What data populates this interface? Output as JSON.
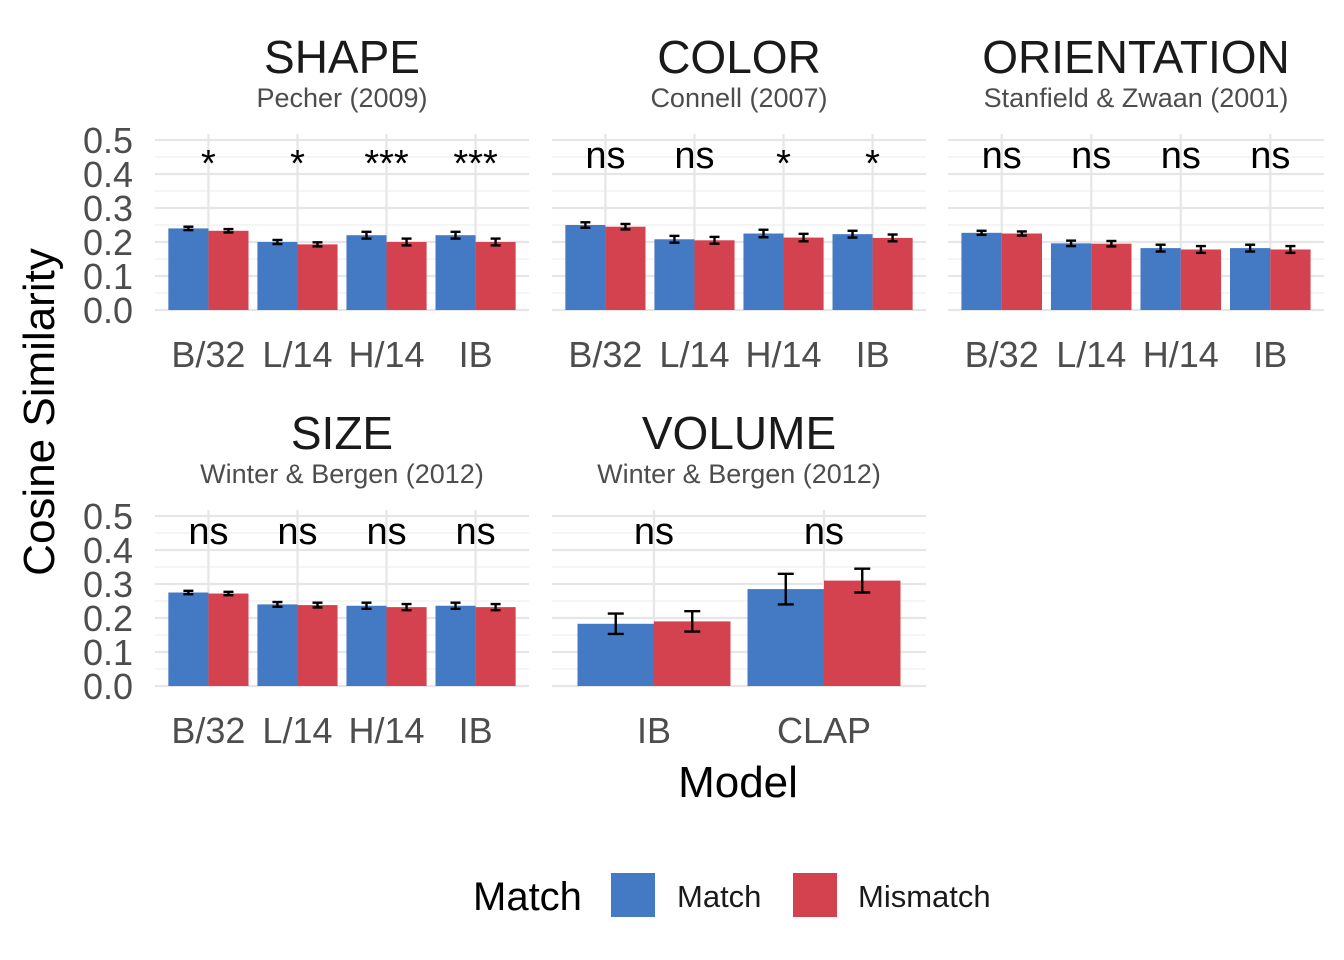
{
  "colors": {
    "match": "#4479C4",
    "mismatch": "#D5424F"
  },
  "chart_data": {
    "type": "bar",
    "xlabel": "Model",
    "ylabel": "Cosine Similarity",
    "ylim": [
      0,
      0.5
    ],
    "yticks": [
      0.0,
      0.1,
      0.2,
      0.3,
      0.4,
      0.5
    ],
    "ytick_labels": [
      "0.0",
      "0.1",
      "0.2",
      "0.3",
      "0.4",
      "0.5"
    ],
    "grid": true,
    "legend": {
      "title": "Match",
      "position": "bottom",
      "entries": [
        "Match",
        "Mismatch"
      ]
    },
    "panels": [
      {
        "title": "SHAPE",
        "subtitle": "Pecher (2009)",
        "categories": [
          "B/32",
          "L/14",
          "H/14",
          "IB"
        ],
        "series": [
          {
            "name": "Match",
            "values": [
              0.24,
              0.2,
              0.22,
              0.22
            ],
            "errors": [
              0.005,
              0.006,
              0.01,
              0.01
            ]
          },
          {
            "name": "Mismatch",
            "values": [
              0.233,
              0.193,
              0.2,
              0.2
            ],
            "errors": [
              0.005,
              0.006,
              0.01,
              0.01
            ]
          }
        ],
        "significance": [
          "*",
          "*",
          "***",
          "***"
        ]
      },
      {
        "title": "COLOR",
        "subtitle": "Connell (2007)",
        "categories": [
          "B/32",
          "L/14",
          "H/14",
          "IB"
        ],
        "series": [
          {
            "name": "Match",
            "values": [
              0.25,
              0.208,
              0.225,
              0.223
            ],
            "errors": [
              0.008,
              0.01,
              0.011,
              0.01
            ]
          },
          {
            "name": "Mismatch",
            "values": [
              0.245,
              0.205,
              0.213,
              0.212
            ],
            "errors": [
              0.008,
              0.01,
              0.011,
              0.01
            ]
          }
        ],
        "significance": [
          "ns",
          "ns",
          "*",
          "*"
        ]
      },
      {
        "title": "ORIENTATION",
        "subtitle": "Stanfield & Zwaan (2001)",
        "categories": [
          "B/32",
          "L/14",
          "H/14",
          "IB"
        ],
        "series": [
          {
            "name": "Match",
            "values": [
              0.227,
              0.196,
              0.182,
              0.182
            ],
            "errors": [
              0.006,
              0.008,
              0.01,
              0.01
            ]
          },
          {
            "name": "Mismatch",
            "values": [
              0.225,
              0.195,
              0.178,
              0.178
            ],
            "errors": [
              0.006,
              0.008,
              0.01,
              0.01
            ]
          }
        ],
        "significance": [
          "ns",
          "ns",
          "ns",
          "ns"
        ]
      },
      {
        "title": "SIZE",
        "subtitle": "Winter & Bergen (2012)",
        "categories": [
          "B/32",
          "L/14",
          "H/14",
          "IB"
        ],
        "series": [
          {
            "name": "Match",
            "values": [
              0.275,
              0.24,
              0.236,
              0.236
            ],
            "errors": [
              0.005,
              0.007,
              0.009,
              0.009
            ]
          },
          {
            "name": "Mismatch",
            "values": [
              0.272,
              0.238,
              0.232,
              0.232
            ],
            "errors": [
              0.005,
              0.007,
              0.009,
              0.009
            ]
          }
        ],
        "significance": [
          "ns",
          "ns",
          "ns",
          "ns"
        ]
      },
      {
        "title": "VOLUME",
        "subtitle": "Winter & Bergen (2012)",
        "categories": [
          "IB",
          "CLAP"
        ],
        "series": [
          {
            "name": "Match",
            "values": [
              0.183,
              0.285
            ],
            "errors": [
              0.03,
              0.045
            ]
          },
          {
            "name": "Mismatch",
            "values": [
              0.19,
              0.31
            ],
            "errors": [
              0.03,
              0.035
            ]
          }
        ],
        "significance": [
          "ns",
          "ns"
        ]
      }
    ]
  }
}
